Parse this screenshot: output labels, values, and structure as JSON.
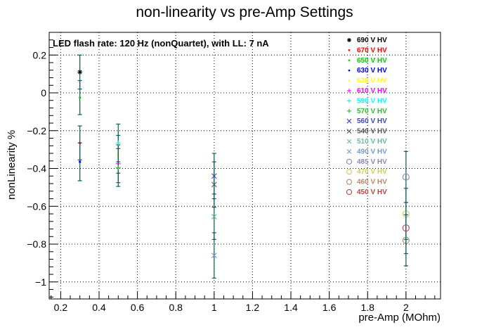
{
  "chart_data": {
    "type": "scatter",
    "title": "non-linearity vs pre-Amp Settings",
    "xlabel": "pre-Amp (MOhm)",
    "ylabel": "nonLinearity %",
    "annotation": "LED flash rate: 120 Hz  (nonQuartet), with LL: 7 nA",
    "xlim": [
      0.14,
      2.18
    ],
    "ylim": [
      -1.09,
      0.32
    ],
    "x_ticks": [
      0.2,
      0.4,
      0.6,
      0.8,
      1,
      1.2,
      1.4,
      1.6,
      1.8,
      2
    ],
    "x_tick_labels": [
      "0.2",
      "0.4",
      "0.6",
      "0.8",
      "1",
      "1.2",
      "1.4",
      "1.6",
      "1.8",
      "2"
    ],
    "y_ticks": [
      0.2,
      0,
      -0.2,
      -0.4,
      -0.6,
      -0.8,
      -1
    ],
    "y_tick_labels": [
      "0.2",
      "0",
      "−0.2",
      "−0.4",
      "−0.6",
      "−0.8",
      "−1"
    ],
    "grid": true,
    "legend_position": "top-right",
    "series": [
      {
        "name": "690 V HV",
        "color": "#000000",
        "marker": "star",
        "points": [
          {
            "x": 0.3,
            "y": 0.11,
            "err": 0.09
          }
        ]
      },
      {
        "name": "670 V HV",
        "color": "#ff0000",
        "marker": "dot",
        "points": [
          {
            "x": 0.3,
            "y": -0.265,
            "err": 0.09
          }
        ]
      },
      {
        "name": "650 V HV",
        "color": "#00cc00",
        "marker": "dot",
        "points": [
          {
            "x": 0.3,
            "y": -0.025,
            "err": 0.09
          }
        ]
      },
      {
        "name": "630 V HV",
        "color": "#0000ff",
        "marker": "dot",
        "points": [
          {
            "x": 0.3,
            "y": -0.365,
            "err": 0.1
          }
        ]
      },
      {
        "name": "630 V HV",
        "color": "#ffff00",
        "marker": "dot",
        "points": [
          {
            "x": 0.5,
            "y": -0.325,
            "err": 0.1
          }
        ]
      },
      {
        "name": "610 V HV",
        "color": "#ff00ff",
        "marker": "plus",
        "points": [
          {
            "x": 0.5,
            "y": -0.375,
            "err": 0.1
          }
        ]
      },
      {
        "name": "590 V HV",
        "color": "#00ffff",
        "marker": "plus",
        "points": [
          {
            "x": 0.5,
            "y": -0.265,
            "err": 0.1
          }
        ]
      },
      {
        "name": "570 V HV",
        "color": "#33bb33",
        "marker": "plus",
        "points": [
          {
            "x": 0.5,
            "y": -0.395,
            "err": 0.1
          }
        ]
      },
      {
        "name": "560 V HV",
        "color": "#4444bb",
        "marker": "cross",
        "points": [
          {
            "x": 1.0,
            "y": -0.44,
            "err": 0.12
          }
        ]
      },
      {
        "name": "540 V HV",
        "color": "#555555",
        "marker": "cross",
        "points": [
          {
            "x": 1.0,
            "y": -0.485,
            "err": 0.12
          }
        ]
      },
      {
        "name": "510 V HV",
        "color": "#66bb99",
        "marker": "cross",
        "points": [
          {
            "x": 1.0,
            "y": -0.655,
            "err": 0.12
          }
        ]
      },
      {
        "name": "490 V HV",
        "color": "#7799cc",
        "marker": "cross",
        "points": [
          {
            "x": 1.0,
            "y": -0.86,
            "err": 0.12
          }
        ]
      },
      {
        "name": "485 V HV",
        "color": "#8888bb",
        "marker": "circle",
        "points": [
          {
            "x": 2.0,
            "y": -0.445,
            "err": 0.135
          }
        ]
      },
      {
        "name": "470 V HV",
        "color": "#cccc66",
        "marker": "circle",
        "points": [
          {
            "x": 2.0,
            "y": -0.64,
            "err": 0.135
          }
        ]
      },
      {
        "name": "460 V HV",
        "color": "#bb8866",
        "marker": "circle",
        "points": [
          {
            "x": 2.0,
            "y": -0.78,
            "err": 0.135
          }
        ]
      },
      {
        "name": "450 V HV",
        "color": "#bb4444",
        "marker": "circle",
        "points": [
          {
            "x": 2.0,
            "y": -0.715,
            "err": 0.135
          }
        ]
      }
    ]
  }
}
